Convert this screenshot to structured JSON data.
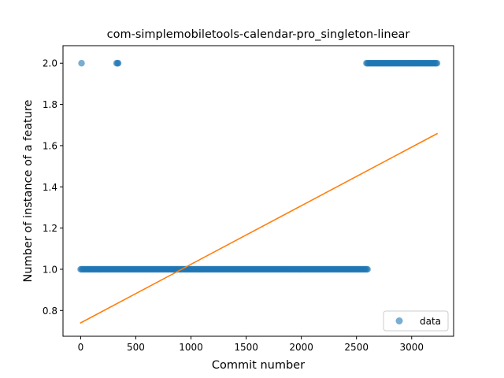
{
  "chart_data": {
    "type": "scatter",
    "title": "com-simplemobiletools-calendar-pro_singleton-linear",
    "xlabel": "Commit number",
    "ylabel": "Number of instance of a feature",
    "xlim": [
      -160,
      3380
    ],
    "ylim": [
      0.675,
      2.085
    ],
    "x_ticks": [
      0,
      500,
      1000,
      1500,
      2000,
      2500,
      3000
    ],
    "y_ticks": [
      0.8,
      1.0,
      1.2,
      1.4,
      1.6,
      1.8,
      2.0
    ],
    "x_tick_labels": [
      "0",
      "500",
      "1000",
      "1500",
      "2000",
      "2500",
      "3000"
    ],
    "y_tick_labels": [
      "0.8",
      "1.0",
      "1.2",
      "1.4",
      "1.6",
      "1.8",
      "2.0"
    ],
    "grid": false,
    "legend_position": "lower-right",
    "series": [
      {
        "name": "data",
        "kind": "scatter",
        "color": "#1f77b4",
        "segments": [
          {
            "x_start": 0,
            "x_end": 2600,
            "y": 1.0
          },
          {
            "x_start": 2590,
            "x_end": 3230,
            "y": 2.0
          }
        ],
        "points": [
          {
            "x": 8,
            "y": 2.0
          },
          {
            "x": 325,
            "y": 2.0
          },
          {
            "x": 335,
            "y": 2.0
          },
          {
            "x": 340,
            "y": 2.0
          }
        ]
      },
      {
        "kind": "line",
        "color": "#ff7f0e",
        "x": [
          0,
          3230
        ],
        "y": [
          0.74,
          1.658
        ]
      }
    ]
  }
}
